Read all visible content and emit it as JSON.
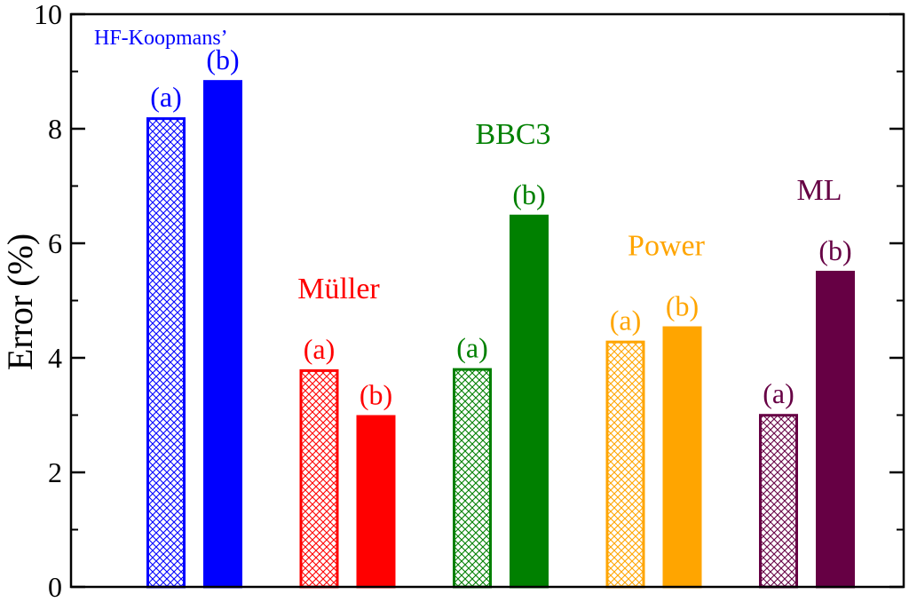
{
  "chart_data": {
    "type": "bar",
    "ylabel": "Error (%)",
    "ylim": [
      0,
      10
    ],
    "yticks": [
      0,
      2,
      4,
      6,
      8,
      10
    ],
    "grid": false,
    "groups": [
      {
        "name": "HF-Koopmans’",
        "color": "#0000ff",
        "bars": [
          {
            "label": "(a)",
            "value": 8.2,
            "style": "hatched"
          },
          {
            "label": "(b)",
            "value": 8.85,
            "style": "solid"
          }
        ]
      },
      {
        "name": "Müller",
        "color": "#ff0000",
        "bars": [
          {
            "label": "(a)",
            "value": 3.8,
            "style": "hatched"
          },
          {
            "label": "(b)",
            "value": 3.0,
            "style": "solid"
          }
        ]
      },
      {
        "name": "BBC3",
        "color": "#008000",
        "bars": [
          {
            "label": "(a)",
            "value": 3.82,
            "style": "hatched"
          },
          {
            "label": "(b)",
            "value": 6.5,
            "style": "solid"
          }
        ]
      },
      {
        "name": "Power",
        "color": "#ffa500",
        "bars": [
          {
            "label": "(a)",
            "value": 4.3,
            "style": "hatched"
          },
          {
            "label": "(b)",
            "value": 4.55,
            "style": "solid"
          }
        ]
      },
      {
        "name": "ML",
        "color": "#660044",
        "bars": [
          {
            "label": "(a)",
            "value": 3.02,
            "style": "hatched"
          },
          {
            "label": "(b)",
            "value": 5.52,
            "style": "solid"
          }
        ]
      }
    ]
  }
}
